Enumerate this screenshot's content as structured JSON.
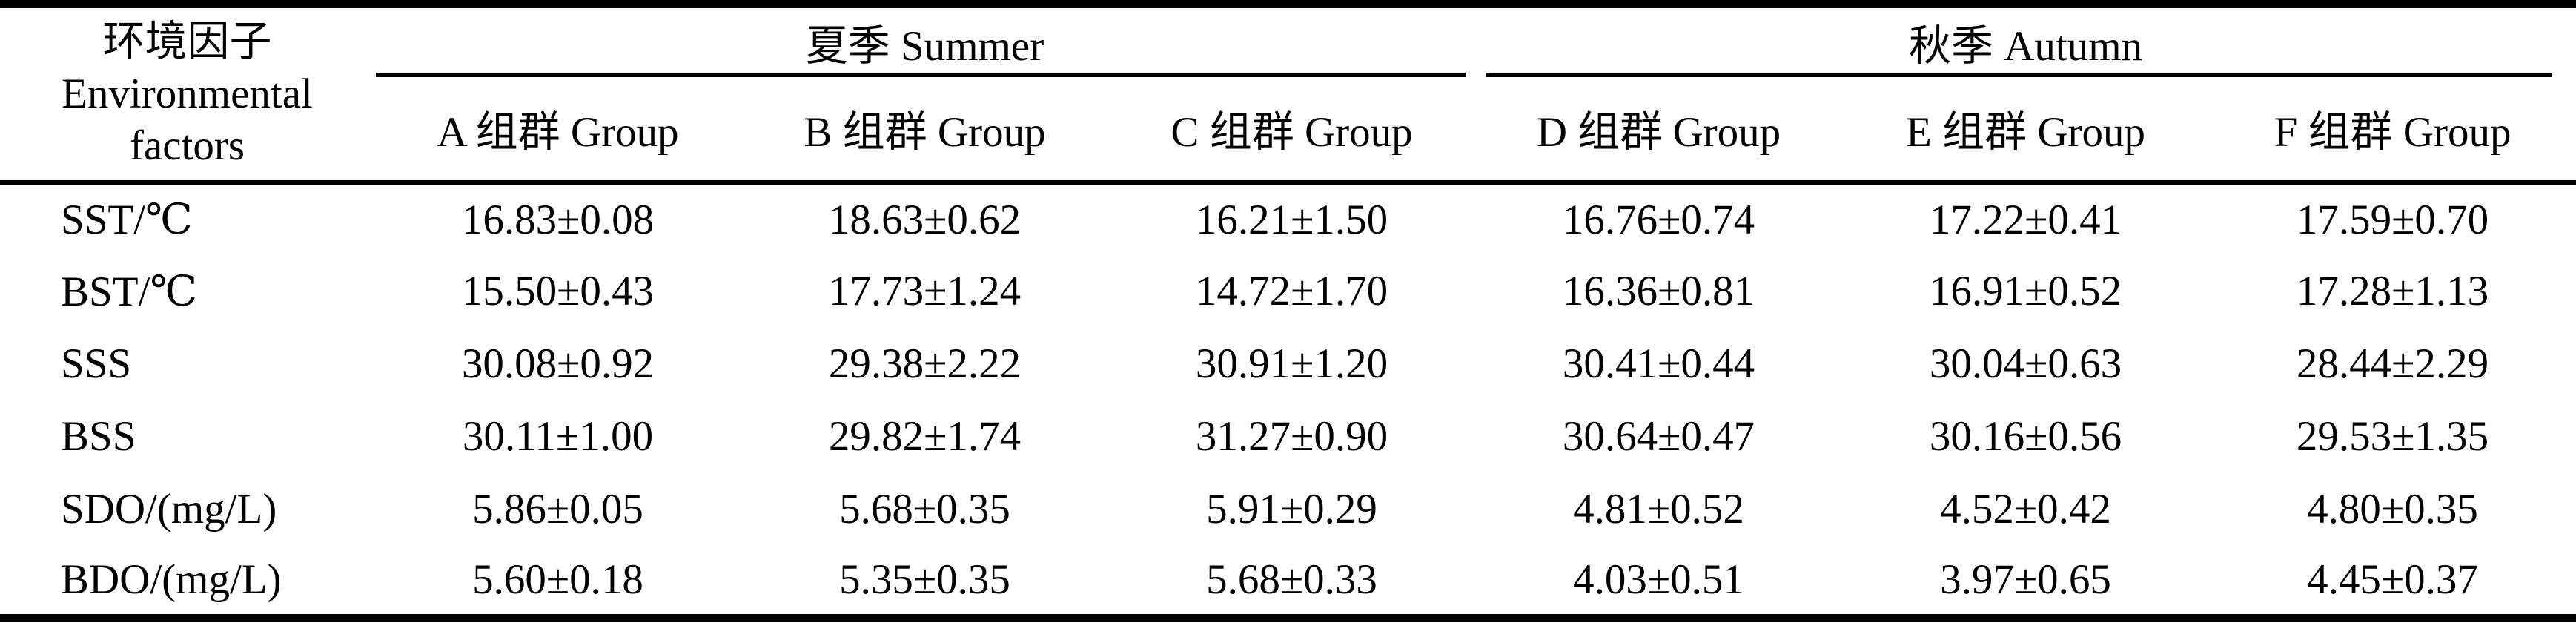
{
  "colors": {
    "background": "#ffffff",
    "text": "#000000",
    "rule": "#000000"
  },
  "table": {
    "header": {
      "factor_lines": [
        "环境因子",
        "Environmental",
        "factors"
      ],
      "seasons": [
        "夏季 Summer",
        "秋季 Autumn"
      ],
      "groups": [
        "A 组群 Group",
        "B 组群 Group",
        "C 组群 Group",
        "D 组群 Group",
        "E 组群 Group",
        "F 组群 Group"
      ]
    },
    "rows": [
      {
        "factor": "SST/℃",
        "values": [
          "16.83±0.08",
          "18.63±0.62",
          "16.21±1.50",
          "16.76±0.74",
          "17.22±0.41",
          "17.59±0.70"
        ]
      },
      {
        "factor": "BST/℃",
        "values": [
          "15.50±0.43",
          "17.73±1.24",
          "14.72±1.70",
          "16.36±0.81",
          "16.91±0.52",
          "17.28±1.13"
        ]
      },
      {
        "factor": "SSS",
        "values": [
          "30.08±0.92",
          "29.38±2.22",
          "30.91±1.20",
          "30.41±0.44",
          "30.04±0.63",
          "28.44±2.29"
        ]
      },
      {
        "factor": "BSS",
        "values": [
          "30.11±1.00",
          "29.82±1.74",
          "31.27±0.90",
          "30.64±0.47",
          "30.16±0.56",
          "29.53±1.35"
        ]
      },
      {
        "factor": "SDO/(mg/L)",
        "values": [
          "5.86±0.05",
          "5.68±0.35",
          "5.91±0.29",
          "4.81±0.52",
          "4.52±0.42",
          "4.80±0.35"
        ]
      },
      {
        "factor": "BDO/(mg/L)",
        "values": [
          "5.60±0.18",
          "5.35±0.35",
          "5.68±0.33",
          "4.03±0.51",
          "3.97±0.65",
          "4.45±0.37"
        ]
      }
    ]
  }
}
